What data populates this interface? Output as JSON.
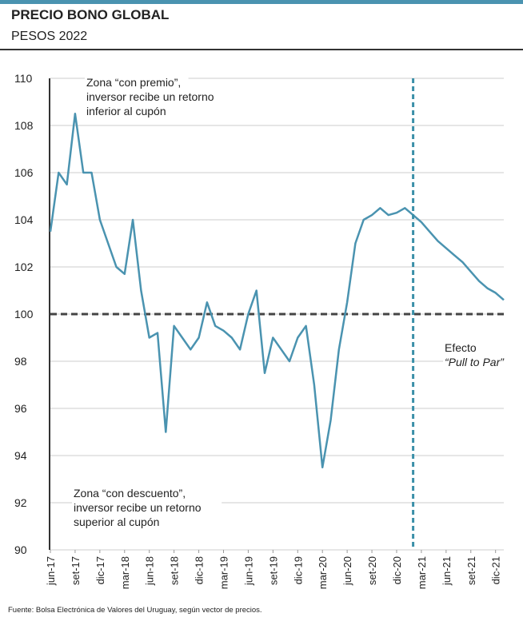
{
  "chart_data": {
    "type": "line",
    "title": "PRECIO BONO GLOBAL",
    "subtitle": "PESOS 2022",
    "source": "Fuente: Bolsa Electrónica de Valores del Uruguay, según vector de precios.",
    "x": [
      "2017-06",
      "2017-07",
      "2017-08",
      "2017-09",
      "2017-10",
      "2017-11",
      "2017-12",
      "2018-01",
      "2018-02",
      "2018-03",
      "2018-04",
      "2018-05",
      "2018-06",
      "2018-07",
      "2018-08",
      "2018-09",
      "2018-10",
      "2018-11",
      "2018-12",
      "2019-01",
      "2019-02",
      "2019-03",
      "2019-04",
      "2019-05",
      "2019-06",
      "2019-07",
      "2019-08",
      "2019-09",
      "2019-10",
      "2019-11",
      "2019-12",
      "2020-01",
      "2020-02",
      "2020-03",
      "2020-04",
      "2020-05",
      "2020-06",
      "2020-07",
      "2020-08",
      "2020-09",
      "2020-10",
      "2020-11",
      "2020-12",
      "2021-01",
      "2021-02",
      "2021-03",
      "2021-04",
      "2021-05",
      "2021-06",
      "2021-07",
      "2021-08",
      "2021-09",
      "2021-10",
      "2021-11",
      "2021-12",
      "2022-01"
    ],
    "series": [
      {
        "name": "Precio",
        "color": "#4a93b0",
        "values": [
          103.5,
          106,
          105.5,
          108.5,
          106,
          106,
          104,
          103,
          102,
          101.7,
          104,
          101,
          99,
          99.2,
          95,
          99.5,
          99,
          98.5,
          99,
          100.5,
          99.5,
          99.3,
          99,
          98.5,
          100,
          101,
          97.5,
          99,
          98.5,
          98,
          99,
          99.5,
          97,
          93.5,
          95.5,
          98.5,
          100.5,
          103,
          104,
          104.2,
          104.5,
          104.2,
          104.3,
          104.5,
          104.2,
          103.9,
          103.5,
          103.1,
          102.8,
          102.5,
          102.2,
          101.8,
          101.4,
          101.1,
          100.9,
          100.6
        ]
      }
    ],
    "xlim": [
      "2017-06",
      "2022-01"
    ],
    "xticks": [
      {
        "value": "2017-06",
        "label": "jun-17"
      },
      {
        "value": "2017-09",
        "label": "set-17"
      },
      {
        "value": "2017-12",
        "label": "dic-17"
      },
      {
        "value": "2018-03",
        "label": "mar-18"
      },
      {
        "value": "2018-06",
        "label": "jun-18"
      },
      {
        "value": "2018-09",
        "label": "set-18"
      },
      {
        "value": "2018-12",
        "label": "dic-18"
      },
      {
        "value": "2019-03",
        "label": "mar-19"
      },
      {
        "value": "2019-06",
        "label": "jun-19"
      },
      {
        "value": "2019-09",
        "label": "set-19"
      },
      {
        "value": "2019-12",
        "label": "dic-19"
      },
      {
        "value": "2020-03",
        "label": "mar-20"
      },
      {
        "value": "2020-06",
        "label": "jun-20"
      },
      {
        "value": "2020-09",
        "label": "set-20"
      },
      {
        "value": "2020-12",
        "label": "dic-20"
      },
      {
        "value": "2021-03",
        "label": "mar-21"
      },
      {
        "value": "2021-06",
        "label": "jun-21"
      },
      {
        "value": "2021-09",
        "label": "set-21"
      },
      {
        "value": "2021-12",
        "label": "dic-21"
      }
    ],
    "ylim": [
      90,
      110
    ],
    "yticks": [
      90,
      92,
      94,
      96,
      98,
      100,
      102,
      104,
      106,
      108,
      110
    ],
    "grid": true,
    "reference_lines": {
      "y": 100,
      "x": "2021-02"
    },
    "annotations": [
      {
        "lines": [
          "Zona “con premio”,",
          "inversor recibe un retorno",
          "inferior al cupón"
        ]
      },
      {
        "lines": [
          "Zona “con descuento”,",
          "inversor recibe un retorno",
          "superior al cupón"
        ]
      },
      {
        "lines": [
          "Efecto",
          "“Pull to Par”"
        ]
      }
    ]
  }
}
